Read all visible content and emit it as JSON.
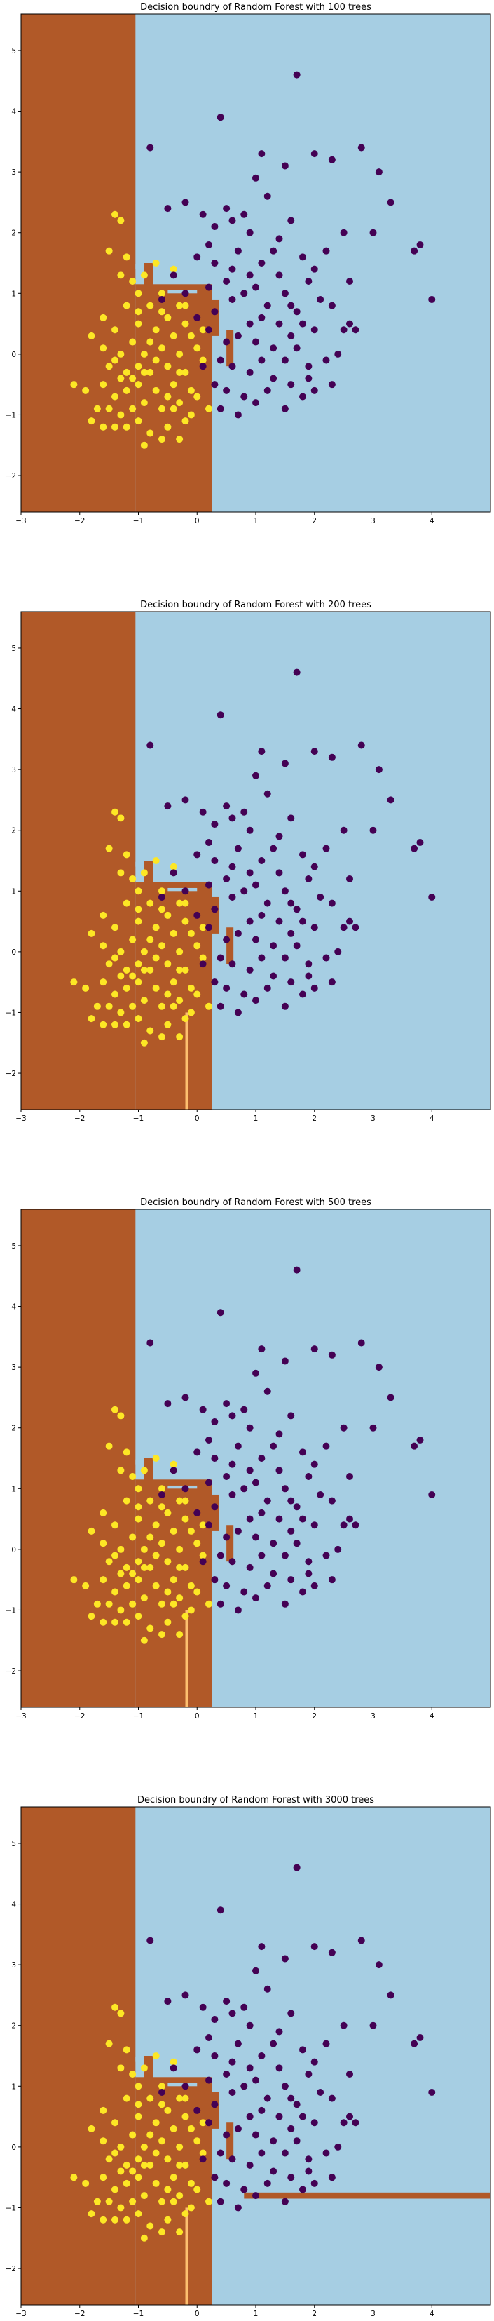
{
  "figure": {
    "background": "#ffffff",
    "region_colors": {
      "class_a": "#b15928",
      "class_b": "#a6cee3"
    },
    "point_colors": {
      "class_a": "#fde725",
      "class_b": "#440154"
    }
  },
  "chart_data": [
    {
      "type": "scatter",
      "title": "Decision boundry of Random Forest with 100 trees",
      "xlim": [
        -3,
        5
      ],
      "ylim": [
        -2.6,
        5.6
      ],
      "xticks": [
        -3,
        -2,
        -1,
        0,
        1,
        2,
        3,
        4
      ],
      "yticks": [
        -2,
        -1,
        0,
        1,
        2,
        3,
        4,
        5
      ],
      "grid": false
    },
    {
      "type": "scatter",
      "title": "Decision boundry of Random Forest with 200 trees",
      "xlim": [
        -3,
        5
      ],
      "ylim": [
        -2.6,
        5.6
      ],
      "xticks": [
        -3,
        -2,
        -1,
        0,
        1,
        2,
        3,
        4
      ],
      "yticks": [
        -2,
        -1,
        0,
        1,
        2,
        3,
        4,
        5
      ],
      "grid": false
    },
    {
      "type": "scatter",
      "title": "Decision boundry of Random Forest with 500 trees",
      "xlim": [
        -3,
        5
      ],
      "ylim": [
        -2.6,
        5.6
      ],
      "xticks": [
        -3,
        -2,
        -1,
        0,
        1,
        2,
        3,
        4
      ],
      "yticks": [
        -2,
        -1,
        0,
        1,
        2,
        3,
        4,
        5
      ],
      "grid": false
    },
    {
      "type": "scatter",
      "title": "Decision boundry of Random Forest with 3000 trees",
      "xlim": [
        -3,
        5
      ],
      "ylim": [
        -2.6,
        5.6
      ],
      "xticks": [
        -3,
        -2,
        -1,
        0,
        1,
        2,
        3,
        4
      ],
      "yticks": [
        -2,
        -1,
        0,
        1,
        2,
        3,
        4,
        5
      ],
      "grid": false
    }
  ],
  "points": {
    "class_b": [
      [
        1.7,
        4.6
      ],
      [
        0.4,
        3.9
      ],
      [
        -0.8,
        3.4
      ],
      [
        1.1,
        3.3
      ],
      [
        1.5,
        3.1
      ],
      [
        2.0,
        3.3
      ],
      [
        2.3,
        3.2
      ],
      [
        2.8,
        3.4
      ],
      [
        3.1,
        3.0
      ],
      [
        1.0,
        2.9
      ],
      [
        3.3,
        2.5
      ],
      [
        0.5,
        2.4
      ],
      [
        0.8,
        2.3
      ],
      [
        1.2,
        2.6
      ],
      [
        0.1,
        2.3
      ],
      [
        0.3,
        2.1
      ],
      [
        0.6,
        2.2
      ],
      [
        1.6,
        2.2
      ],
      [
        2.5,
        2.0
      ],
      [
        3.0,
        2.0
      ],
      [
        3.7,
        1.7
      ],
      [
        3.8,
        1.8
      ],
      [
        0.9,
        2.0
      ],
      [
        1.4,
        1.9
      ],
      [
        2.2,
        1.7
      ],
      [
        -0.5,
        2.4
      ],
      [
        -0.2,
        2.5
      ],
      [
        0.0,
        1.6
      ],
      [
        0.3,
        1.5
      ],
      [
        0.7,
        1.7
      ],
      [
        1.1,
        1.5
      ],
      [
        1.3,
        1.7
      ],
      [
        1.8,
        1.6
      ],
      [
        2.0,
        1.4
      ],
      [
        2.6,
        1.2
      ],
      [
        4.0,
        0.9
      ],
      [
        0.2,
        1.1
      ],
      [
        0.5,
        1.2
      ],
      [
        0.8,
        1.0
      ],
      [
        1.0,
        1.1
      ],
      [
        1.2,
        0.8
      ],
      [
        1.5,
        1.0
      ],
      [
        1.7,
        0.7
      ],
      [
        1.9,
        1.2
      ],
      [
        2.1,
        0.9
      ],
      [
        0.3,
        0.7
      ],
      [
        0.6,
        0.9
      ],
      [
        0.9,
        0.5
      ],
      [
        1.1,
        0.6
      ],
      [
        1.4,
        0.5
      ],
      [
        1.6,
        0.3
      ],
      [
        1.8,
        0.5
      ],
      [
        2.0,
        0.4
      ],
      [
        2.5,
        0.4
      ],
      [
        0.2,
        0.4
      ],
      [
        0.5,
        0.2
      ],
      [
        0.7,
        0.3
      ],
      [
        1.0,
        0.2
      ],
      [
        1.3,
        0.1
      ],
      [
        1.5,
        -0.1
      ],
      [
        1.7,
        0.1
      ],
      [
        2.2,
        -0.1
      ],
      [
        2.6,
        0.5
      ],
      [
        0.4,
        -0.1
      ],
      [
        0.6,
        -0.2
      ],
      [
        0.9,
        -0.3
      ],
      [
        1.1,
        -0.1
      ],
      [
        1.3,
        -0.4
      ],
      [
        1.6,
        -0.5
      ],
      [
        1.9,
        -0.2
      ],
      [
        2.3,
        -0.5
      ],
      [
        0.3,
        -0.5
      ],
      [
        0.5,
        -0.6
      ],
      [
        0.8,
        -0.7
      ],
      [
        1.0,
        -0.8
      ],
      [
        1.2,
        -0.6
      ],
      [
        1.8,
        -0.7
      ],
      [
        2.0,
        -0.6
      ],
      [
        0.7,
        -1.0
      ],
      [
        0.4,
        -0.9
      ],
      [
        1.5,
        -0.9
      ],
      [
        0.1,
        -0.2
      ],
      [
        0.0,
        0.6
      ],
      [
        -0.2,
        1.0
      ],
      [
        -0.4,
        1.3
      ],
      [
        -0.6,
        0.9
      ],
      [
        0.2,
        1.8
      ],
      [
        0.6,
        1.4
      ],
      [
        0.9,
        1.3
      ],
      [
        1.4,
        1.3
      ],
      [
        1.6,
        0.8
      ],
      [
        2.3,
        0.8
      ],
      [
        2.7,
        0.4
      ],
      [
        1.9,
        -0.4
      ],
      [
        2.4,
        0.0
      ]
    ],
    "class_a": [
      [
        -1.4,
        2.3
      ],
      [
        -1.3,
        2.2
      ],
      [
        -1.5,
        1.7
      ],
      [
        -1.3,
        1.3
      ],
      [
        -1.1,
        1.2
      ],
      [
        -0.9,
        1.3
      ],
      [
        -1.0,
        1.0
      ],
      [
        -0.6,
        1.0
      ],
      [
        -0.3,
        0.8
      ],
      [
        -1.6,
        0.6
      ],
      [
        -1.2,
        0.8
      ],
      [
        -0.8,
        0.8
      ],
      [
        -0.5,
        0.6
      ],
      [
        -0.2,
        0.5
      ],
      [
        -1.8,
        0.3
      ],
      [
        -1.4,
        0.4
      ],
      [
        -1.0,
        0.5
      ],
      [
        -0.7,
        0.4
      ],
      [
        -0.4,
        0.3
      ],
      [
        -0.1,
        0.3
      ],
      [
        -1.6,
        0.1
      ],
      [
        -1.3,
        0.0
      ],
      [
        -1.1,
        0.2
      ],
      [
        -0.9,
        0.0
      ],
      [
        -0.6,
        0.1
      ],
      [
        -0.3,
        0.0
      ],
      [
        0.0,
        0.1
      ],
      [
        -1.5,
        -0.2
      ],
      [
        -1.2,
        -0.3
      ],
      [
        -1.0,
        -0.2
      ],
      [
        -0.8,
        -0.3
      ],
      [
        -0.5,
        -0.2
      ],
      [
        -0.2,
        -0.3
      ],
      [
        0.1,
        -0.1
      ],
      [
        -1.9,
        -0.6
      ],
      [
        -1.6,
        -0.5
      ],
      [
        -1.4,
        -0.7
      ],
      [
        -1.2,
        -0.6
      ],
      [
        -1.0,
        -0.5
      ],
      [
        -0.7,
        -0.6
      ],
      [
        -0.4,
        -0.5
      ],
      [
        -0.1,
        -0.6
      ],
      [
        -1.5,
        -0.9
      ],
      [
        -1.3,
        -1.0
      ],
      [
        -1.1,
        -0.9
      ],
      [
        -0.9,
        -0.8
      ],
      [
        -0.6,
        -0.9
      ],
      [
        -0.3,
        -0.8
      ],
      [
        0.0,
        -0.7
      ],
      [
        -1.2,
        -1.2
      ],
      [
        -1.0,
        -1.1
      ],
      [
        -0.8,
        -1.3
      ],
      [
        -0.5,
        -1.2
      ],
      [
        -0.2,
        -1.1
      ],
      [
        -0.9,
        -1.5
      ],
      [
        -0.6,
        -1.4
      ],
      [
        -0.3,
        -1.4
      ],
      [
        -1.4,
        -1.2
      ],
      [
        -1.7,
        -0.9
      ],
      [
        -1.1,
        -0.4
      ],
      [
        -0.7,
        -0.1
      ],
      [
        -0.4,
        -0.9
      ],
      [
        -0.2,
        0.8
      ],
      [
        0.2,
        -0.9
      ],
      [
        -1.8,
        -1.1
      ],
      [
        -1.6,
        -1.2
      ],
      [
        -1.3,
        -0.4
      ],
      [
        -0.8,
        0.2
      ],
      [
        -0.5,
        -0.7
      ],
      [
        -0.1,
        -1.0
      ],
      [
        0.1,
        0.4
      ],
      [
        -2.1,
        -0.5
      ],
      [
        -1.2,
        1.6
      ],
      [
        -0.7,
        1.5
      ],
      [
        -0.4,
        1.4
      ],
      [
        -1.0,
        0.7
      ],
      [
        -0.6,
        0.7
      ],
      [
        -1.4,
        -0.1
      ],
      [
        -0.3,
        -0.3
      ],
      [
        -0.9,
        -0.3
      ]
    ],
    "point_radius_note": "markers drawn as filled circles"
  }
}
